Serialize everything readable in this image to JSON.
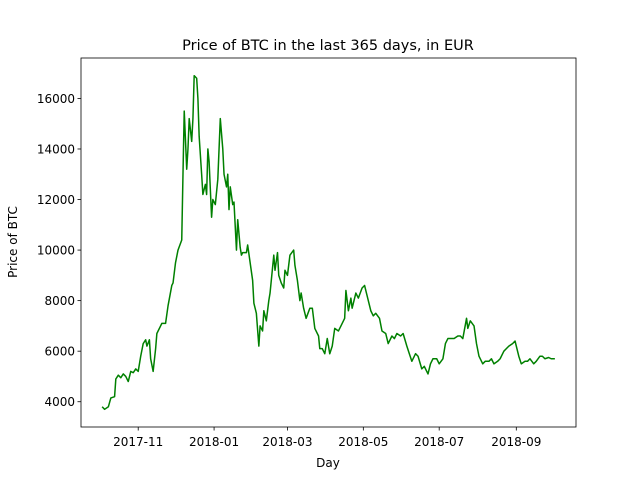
{
  "chart_data": {
    "type": "line",
    "title": "Price of BTC in the last 365 days, in EUR",
    "xlabel": "Day",
    "ylabel": "Price of BTC",
    "x": [
      -29,
      -27,
      -24,
      -22,
      -19,
      -18,
      -16,
      -14,
      -12,
      -10,
      -8,
      -6,
      -4,
      -2,
      0,
      2,
      4,
      6,
      7,
      9,
      10,
      12,
      14,
      15,
      18,
      19,
      22,
      24,
      27,
      28,
      30,
      32,
      35,
      36,
      37,
      39,
      40,
      41,
      43,
      44,
      45,
      47,
      48,
      49,
      51,
      52,
      54,
      55,
      56,
      57,
      59,
      60,
      62,
      64,
      66,
      68,
      69,
      71,
      72,
      73,
      74,
      76,
      77,
      79,
      80,
      82,
      83,
      84,
      87,
      88,
      90,
      92,
      93,
      95,
      97,
      98,
      100,
      101,
      103,
      105,
      106,
      109,
      110,
      112,
      113,
      115,
      117,
      118,
      120,
      122,
      125,
      126,
      128,
      130,
      131,
      133,
      135,
      138,
      140,
      142,
      145,
      146,
      148,
      150,
      152,
      154,
      156,
      158,
      161,
      163,
      166,
      167,
      169,
      171,
      172,
      175,
      177,
      180,
      182,
      184,
      187,
      189,
      191,
      194,
      196,
      199,
      201,
      204,
      206,
      208,
      211,
      213,
      216,
      218,
      220,
      223,
      225,
      228,
      230,
      233,
      235,
      237,
      240,
      242,
      245,
      247,
      249,
      252,
      254,
      257,
      259,
      261,
      264,
      265,
      267,
      270,
      272,
      274,
      277,
      279,
      282,
      284,
      286,
      289,
      291,
      294,
      296,
      298,
      301,
      303,
      306,
      308,
      311,
      313,
      315,
      318,
      320,
      323,
      325,
      327,
      330,
      332,
      335
    ],
    "values": [
      3800,
      3700,
      3800,
      4150,
      4200,
      4900,
      5050,
      4950,
      5100,
      5000,
      4800,
      5200,
      5150,
      5300,
      5200,
      5800,
      6300,
      6450,
      6200,
      6450,
      5700,
      5200,
      6100,
      6700,
      7000,
      7100,
      7100,
      7800,
      8600,
      8700,
      9500,
      10000,
      10400,
      13000,
      15500,
      13200,
      14000,
      15200,
      14300,
      15200,
      16900,
      16800,
      16000,
      14500,
      13000,
      12200,
      12600,
      12200,
      14000,
      13500,
      11300,
      12000,
      11800,
      12800,
      15200,
      14000,
      13000,
      12500,
      13000,
      11600,
      12500,
      11800,
      11900,
      10000,
      11200,
      10100,
      9800,
      9900,
      9900,
      10200,
      9500,
      8800,
      7900,
      7500,
      6200,
      7000,
      6800,
      7600,
      7200,
      8000,
      8300,
      9800,
      9200,
      9900,
      9000,
      8700,
      8500,
      9200,
      9000,
      9800,
      10000,
      9400,
      8800,
      8000,
      8300,
      7700,
      7300,
      7700,
      7700,
      6900,
      6600,
      6100,
      6100,
      5900,
      6500,
      5900,
      6200,
      6900,
      6800,
      7000,
      7300,
      8400,
      7600,
      8100,
      7700,
      8300,
      8100,
      8500,
      8600,
      8200,
      7600,
      7400,
      7500,
      7300,
      6800,
      6700,
      6300,
      6600,
      6500,
      6700,
      6600,
      6700,
      6200,
      5900,
      5600,
      5900,
      5800,
      5300,
      5400,
      5100,
      5500,
      5700,
      5700,
      5500,
      5700,
      6300,
      6500,
      6500,
      6500,
      6600,
      6600,
      6500,
      7300,
      6900,
      7200,
      7000,
      6300,
      5800,
      5500,
      5600,
      5600,
      5700,
      5500,
      5600,
      5700,
      6000,
      6100,
      6200,
      6300,
      6400,
      5800,
      5500,
      5600,
      5600,
      5700,
      5500,
      5600,
      5800,
      5800,
      5700,
      5750,
      5700,
      5700
    ],
    "color": "#008000",
    "xlim": [
      -46,
      352
    ],
    "ylim": [
      3000,
      17600
    ],
    "xticks": [
      {
        "value": 0,
        "label": "2017-11"
      },
      {
        "value": 61,
        "label": "2018-01"
      },
      {
        "value": 120,
        "label": "2018-03"
      },
      {
        "value": 181,
        "label": "2018-05"
      },
      {
        "value": 242,
        "label": "2018-07"
      },
      {
        "value": 304,
        "label": "2018-09"
      }
    ],
    "yticks": [
      4000,
      6000,
      8000,
      10000,
      12000,
      14000,
      16000
    ]
  }
}
